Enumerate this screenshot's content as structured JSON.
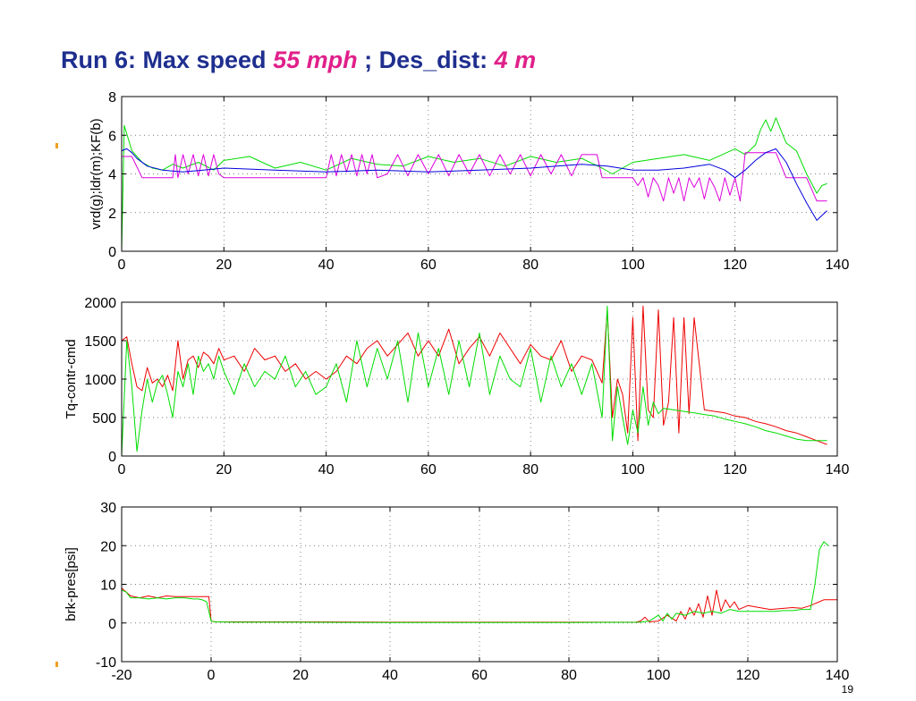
{
  "slide": {
    "title_parts": [
      "Run 6: Max speed ",
      "55 mph",
      " ; Des_dist: ",
      "4 m"
    ],
    "page_number": "19",
    "accent_color": "#f0a020",
    "title_color": "#1f2f8f",
    "highlight_color": "#e0208a"
  },
  "chart_data": [
    {
      "type": "line",
      "ylabel": "vrd(g);ldr(m);KF(b)",
      "xlim": [
        0,
        140
      ],
      "ylim": [
        0,
        8
      ],
      "xticks": [
        0,
        20,
        40,
        60,
        80,
        100,
        120,
        140
      ],
      "yticks": [
        0,
        2,
        4,
        6,
        8
      ],
      "grid": true,
      "series": [
        {
          "color": "#00dd00",
          "x": [
            0,
            0.5,
            2,
            4,
            6,
            8,
            10,
            12,
            15,
            18,
            20,
            25,
            30,
            35,
            40,
            45,
            50,
            55,
            60,
            65,
            70,
            75,
            80,
            85,
            90,
            94,
            96,
            100,
            105,
            110,
            115,
            120,
            122,
            124,
            125,
            126,
            127,
            128,
            130,
            132,
            134,
            136,
            137,
            138
          ],
          "y": [
            0,
            6.5,
            5.2,
            4.6,
            4.3,
            4.2,
            4.5,
            4.3,
            4.6,
            4.2,
            4.7,
            4.9,
            4.3,
            4.6,
            4.2,
            4.8,
            4.5,
            4.4,
            4.9,
            4.6,
            4.8,
            4.4,
            4.9,
            4.6,
            4.8,
            4.3,
            4.0,
            4.6,
            4.8,
            5.0,
            4.7,
            5.3,
            5.0,
            5.5,
            6.3,
            6.8,
            6.2,
            6.9,
            5.6,
            5.2,
            4.0,
            3.0,
            3.4,
            3.5
          ]
        },
        {
          "color": "#dd00dd",
          "x": [
            0,
            2,
            4,
            10,
            10.5,
            11,
            12,
            13,
            14,
            15,
            16,
            17,
            18,
            19,
            20,
            40,
            41,
            42,
            43,
            44,
            45,
            46,
            47,
            48,
            49,
            50,
            52,
            54,
            56,
            58,
            60,
            62,
            64,
            66,
            68,
            70,
            72,
            74,
            76,
            78,
            80,
            82,
            84,
            86,
            88,
            90,
            93,
            94,
            96,
            100,
            101,
            102,
            103,
            104,
            105,
            106,
            107,
            108,
            109,
            110,
            111,
            112,
            113,
            114,
            115,
            116,
            117,
            118,
            119,
            120,
            121,
            122,
            125,
            128,
            130,
            132,
            134,
            136,
            138
          ],
          "y": [
            4.9,
            4.9,
            3.8,
            3.8,
            5.0,
            3.8,
            5.0,
            4.0,
            5.0,
            3.9,
            5.0,
            3.9,
            5.0,
            4.0,
            3.8,
            3.8,
            5.0,
            3.9,
            5.0,
            4.1,
            5.0,
            3.9,
            5.0,
            4.0,
            5.0,
            3.8,
            4.0,
            5.0,
            3.9,
            5.0,
            4.0,
            5.0,
            3.9,
            5.0,
            4.0,
            5.0,
            3.9,
            5.0,
            4.0,
            5.0,
            3.9,
            5.0,
            4.0,
            5.0,
            3.9,
            5.0,
            5.0,
            3.8,
            3.8,
            3.8,
            3.4,
            3.8,
            2.8,
            3.8,
            3.4,
            2.6,
            3.8,
            3.0,
            3.8,
            2.6,
            3.8,
            3.3,
            3.8,
            2.7,
            3.8,
            3.3,
            2.6,
            3.8,
            2.9,
            3.8,
            2.6,
            5.1,
            5.1,
            5.1,
            3.8,
            3.8,
            3.8,
            2.6,
            2.6
          ]
        },
        {
          "color": "#0000dd",
          "x": [
            0,
            1,
            2,
            3,
            5,
            8,
            12,
            16,
            20,
            30,
            40,
            50,
            60,
            70,
            80,
            90,
            95,
            100,
            105,
            110,
            115,
            118,
            120,
            122,
            124,
            126,
            128,
            130,
            132,
            134,
            136,
            138
          ],
          "y": [
            5.2,
            5.3,
            5.1,
            4.8,
            4.4,
            4.2,
            4.1,
            4.2,
            4.3,
            4.2,
            4.1,
            4.2,
            4.1,
            4.2,
            4.3,
            4.5,
            4.4,
            4.2,
            4.2,
            4.3,
            4.5,
            4.2,
            3.8,
            4.2,
            4.7,
            5.1,
            5.3,
            4.6,
            3.5,
            2.5,
            1.6,
            2.1
          ]
        }
      ]
    },
    {
      "type": "line",
      "ylabel": "Tq-contr-cmd",
      "xlim": [
        0,
        140
      ],
      "ylim": [
        0,
        2000
      ],
      "xticks": [
        0,
        20,
        40,
        60,
        80,
        100,
        120,
        140
      ],
      "yticks": [
        0,
        500,
        1000,
        1500,
        2000
      ],
      "grid": true,
      "series": [
        {
          "color": "#ee0000",
          "x": [
            0,
            1,
            2,
            3,
            4,
            5,
            6,
            7,
            8,
            9,
            10,
            11,
            12,
            13,
            14,
            15,
            16,
            17,
            18,
            19,
            20,
            22,
            24,
            26,
            28,
            30,
            32,
            34,
            36,
            38,
            40,
            42,
            44,
            46,
            48,
            50,
            52,
            54,
            56,
            58,
            60,
            62,
            64,
            66,
            68,
            70,
            72,
            74,
            76,
            78,
            80,
            82,
            84,
            86,
            88,
            90,
            92,
            94,
            95,
            96,
            97,
            98,
            99,
            100,
            101,
            102,
            103,
            104,
            105,
            106,
            107,
            108,
            109,
            110,
            111,
            112,
            114,
            116,
            118,
            120,
            122,
            124,
            126,
            128,
            130,
            132,
            134,
            136,
            138
          ],
          "y": [
            1500,
            1550,
            1200,
            900,
            850,
            1150,
            950,
            1000,
            900,
            1050,
            850,
            1500,
            1000,
            1250,
            1300,
            1150,
            1350,
            1300,
            1200,
            1400,
            1250,
            1300,
            1100,
            1400,
            1250,
            1300,
            1100,
            1200,
            1000,
            1100,
            1000,
            1100,
            1300,
            1200,
            1400,
            1500,
            1300,
            1450,
            1600,
            1300,
            1500,
            1300,
            1650,
            1200,
            1400,
            1550,
            1300,
            1600,
            1400,
            1200,
            1450,
            1300,
            1250,
            1500,
            1100,
            1300,
            1250,
            950,
            1900,
            500,
            1000,
            800,
            300,
            1800,
            200,
            1950,
            600,
            500,
            1900,
            400,
            700,
            1800,
            300,
            1800,
            550,
            1800,
            600,
            580,
            560,
            520,
            500,
            450,
            420,
            380,
            330,
            300,
            250,
            200,
            150
          ]
        },
        {
          "color": "#00dd00",
          "x": [
            0,
            1,
            2,
            3,
            4,
            5,
            6,
            7,
            8,
            9,
            10,
            11,
            12,
            13,
            14,
            15,
            16,
            17,
            18,
            19,
            20,
            22,
            24,
            26,
            28,
            30,
            32,
            34,
            36,
            38,
            40,
            42,
            44,
            46,
            48,
            50,
            52,
            54,
            56,
            58,
            60,
            62,
            64,
            66,
            68,
            70,
            72,
            74,
            76,
            78,
            80,
            82,
            84,
            86,
            88,
            90,
            92,
            94,
            95,
            96,
            97,
            98,
            99,
            100,
            101,
            102,
            103,
            104,
            105,
            106,
            108,
            110,
            112,
            114,
            116,
            118,
            120,
            122,
            124,
            126,
            128,
            130,
            132,
            134,
            136,
            138
          ],
          "y": [
            0,
            1500,
            900,
            60,
            600,
            1000,
            700,
            950,
            1050,
            800,
            500,
            1100,
            900,
            1200,
            800,
            1300,
            1100,
            1200,
            1000,
            1300,
            1100,
            800,
            1200,
            900,
            1100,
            1000,
            1300,
            900,
            1100,
            800,
            900,
            1200,
            700,
            1500,
            900,
            1400,
            1000,
            1500,
            700,
            1600,
            900,
            1400,
            800,
            1500,
            900,
            1600,
            800,
            1300,
            1000,
            900,
            1400,
            700,
            1300,
            900,
            1200,
            800,
            1200,
            500,
            1950,
            200,
            900,
            500,
            150,
            600,
            300,
            900,
            400,
            700,
            550,
            620,
            600,
            580,
            560,
            540,
            520,
            480,
            450,
            420,
            380,
            330,
            300,
            260,
            220,
            200,
            200,
            200
          ]
        }
      ]
    },
    {
      "type": "line",
      "ylabel": "brk-pres[psi]",
      "xlim": [
        -20,
        140
      ],
      "ylim": [
        -10,
        30
      ],
      "xticks": [
        -20,
        0,
        20,
        40,
        60,
        80,
        100,
        120,
        140
      ],
      "yticks": [
        -10,
        0,
        10,
        20,
        30
      ],
      "grid": true,
      "series": [
        {
          "color": "#ee0000",
          "x": [
            -20,
            -19,
            -18,
            -16,
            -14,
            -12,
            -10,
            -8,
            -6,
            -4,
            -2,
            -0.5,
            0,
            1,
            5,
            20,
            40,
            60,
            80,
            95,
            96,
            97,
            98,
            100,
            102,
            104,
            105,
            106,
            107,
            108,
            109,
            110,
            111,
            112,
            113,
            114,
            115,
            116,
            117,
            118,
            120,
            125,
            130,
            132,
            134,
            135,
            136,
            137,
            138,
            140
          ],
          "y": [
            9,
            8,
            7,
            6.5,
            7,
            6.5,
            7,
            6.8,
            6.8,
            6.8,
            6.8,
            6.8,
            0.5,
            0.3,
            0.3,
            0.3,
            0.2,
            0.2,
            0.2,
            0.2,
            0.5,
            1.5,
            0.3,
            0.5,
            2,
            0.5,
            3,
            1,
            4,
            2,
            5,
            1.5,
            7,
            2,
            8.5,
            3,
            6,
            4,
            5.5,
            3.5,
            4.5,
            3.5,
            4,
            3.8,
            4.5,
            5,
            5.5,
            6,
            6,
            6
          ]
        },
        {
          "color": "#00dd00",
          "x": [
            -20,
            -19,
            -18,
            -16,
            -14,
            -12,
            -10,
            -8,
            -6,
            -4,
            -3,
            -2,
            -1,
            0,
            1,
            5,
            20,
            40,
            60,
            80,
            96,
            98,
            100,
            101,
            102,
            103,
            104,
            106,
            108,
            110,
            112,
            114,
            116,
            118,
            120,
            122,
            124,
            126,
            128,
            130,
            132,
            134,
            135,
            136,
            137,
            138
          ],
          "y": [
            8.5,
            8,
            6.5,
            6.5,
            6.2,
            6.5,
            6.2,
            6.5,
            6.5,
            6.2,
            6.2,
            6.0,
            5.5,
            0.5,
            0.3,
            0.2,
            0.2,
            0.1,
            0.1,
            0.1,
            0.2,
            0.5,
            2,
            0.5,
            2.5,
            1,
            2.5,
            2,
            3,
            2.5,
            3,
            2.5,
            3.5,
            3,
            3,
            3,
            3,
            3,
            3.2,
            3.2,
            3.5,
            3.5,
            10,
            19,
            21,
            20
          ]
        }
      ]
    }
  ]
}
